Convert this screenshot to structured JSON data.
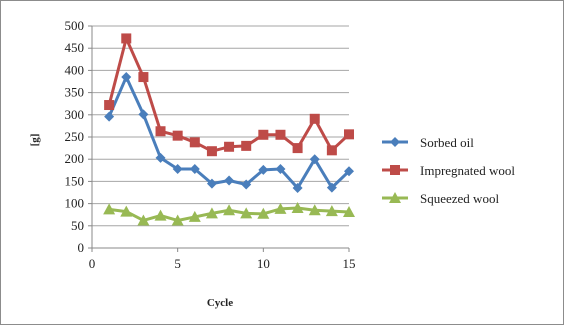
{
  "chart_data": {
    "type": "line",
    "xlabel": "Cycle",
    "ylabel": "[g]",
    "xlim": [
      0,
      15
    ],
    "ylim": [
      0,
      500
    ],
    "x_ticks": [
      0,
      5,
      10,
      15
    ],
    "y_ticks": [
      0,
      50,
      100,
      150,
      200,
      250,
      300,
      350,
      400,
      450,
      500
    ],
    "grid": "horizontal",
    "legend_position": "right",
    "x": [
      1,
      2,
      3,
      4,
      5,
      6,
      7,
      8,
      9,
      10,
      11,
      12,
      13,
      14,
      15
    ],
    "series": [
      {
        "name": "Sorbed oil",
        "color": "#4a7ebb",
        "marker": "diamond",
        "values": [
          296,
          385,
          301,
          203,
          178,
          178,
          145,
          152,
          143,
          176,
          178,
          135,
          200,
          136,
          173
        ]
      },
      {
        "name": "Impregnated wool",
        "color": "#be4b48",
        "marker": "square",
        "values": [
          322,
          472,
          385,
          263,
          253,
          238,
          218,
          228,
          230,
          255,
          255,
          225,
          291,
          220,
          256
        ]
      },
      {
        "name": "Squeezed wool",
        "color": "#98b954",
        "marker": "triangle",
        "values": [
          87,
          82,
          62,
          73,
          62,
          70,
          78,
          85,
          78,
          77,
          88,
          90,
          85,
          83,
          81
        ]
      }
    ]
  }
}
